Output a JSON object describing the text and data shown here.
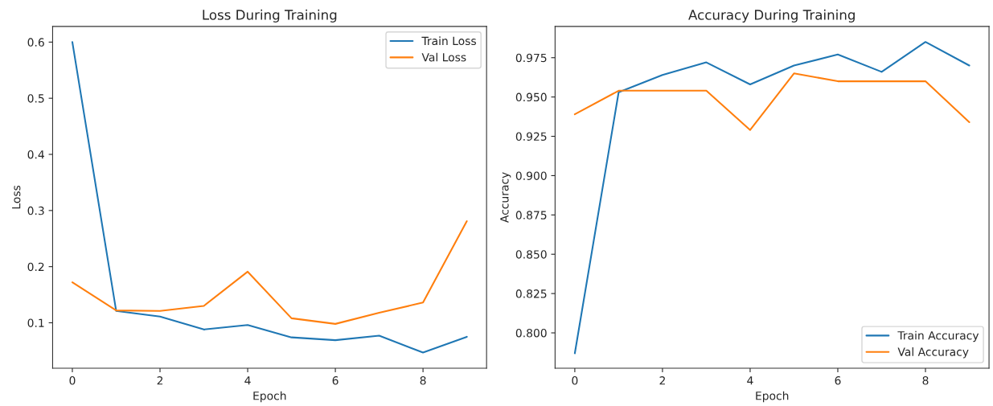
{
  "chart_data": [
    {
      "type": "line",
      "title": "Loss During Training",
      "xlabel": "Epoch",
      "ylabel": "Loss",
      "x": [
        0,
        1,
        2,
        3,
        4,
        5,
        6,
        7,
        8,
        9
      ],
      "series": [
        {
          "name": "Train Loss",
          "color": "#1f77b4",
          "values": [
            0.6,
            0.121,
            0.111,
            0.088,
            0.096,
            0.074,
            0.069,
            0.077,
            0.047,
            0.075
          ]
        },
        {
          "name": "Val Loss",
          "color": "#ff7f0e",
          "values": [
            0.172,
            0.122,
            0.121,
            0.13,
            0.191,
            0.108,
            0.098,
            0.118,
            0.136,
            0.281
          ]
        }
      ],
      "xlim": [
        -0.45,
        9.45
      ],
      "xticks": [
        0,
        2,
        4,
        6,
        8
      ],
      "ylim": [
        0.019,
        0.628
      ],
      "yticks": [
        0.1,
        0.2,
        0.3,
        0.4,
        0.5,
        0.6
      ],
      "legend": "top right",
      "grid": false
    },
    {
      "type": "line",
      "title": "Accuracy During Training",
      "xlabel": "Epoch",
      "ylabel": "Accuracy",
      "x": [
        0,
        1,
        2,
        3,
        4,
        5,
        6,
        7,
        8,
        9
      ],
      "series": [
        {
          "name": "Train Accuracy",
          "color": "#1f77b4",
          "values": [
            0.787,
            0.953,
            0.964,
            0.972,
            0.958,
            0.97,
            0.977,
            0.966,
            0.985,
            0.97
          ]
        },
        {
          "name": "Val Accuracy",
          "color": "#ff7f0e",
          "values": [
            0.939,
            0.954,
            0.954,
            0.954,
            0.929,
            0.965,
            0.96,
            0.96,
            0.96,
            0.934
          ]
        }
      ],
      "xlim": [
        -0.45,
        9.45
      ],
      "xticks": [
        0,
        2,
        4,
        6,
        8
      ],
      "ylim": [
        0.7775,
        0.9949
      ],
      "yticks": [
        {
          "value": 0.8,
          "label": "0.800"
        },
        0.825,
        {
          "value": 0.85,
          "label": "0.850"
        },
        0.875,
        {
          "value": 0.9,
          "label": "0.900"
        },
        0.925,
        {
          "value": 0.95,
          "label": "0.950"
        },
        0.975
      ],
      "legend": "bottom right",
      "grid": false
    }
  ]
}
